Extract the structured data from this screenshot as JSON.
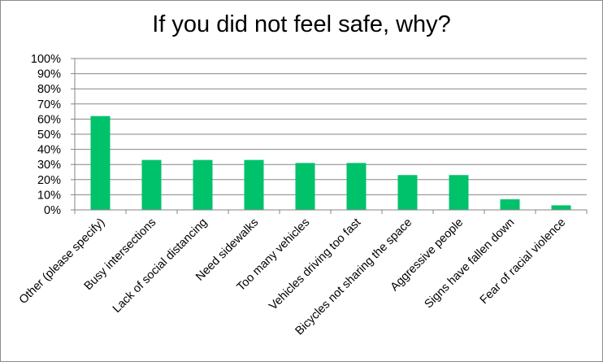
{
  "chart_data": {
    "type": "bar",
    "title": "If you did not feel safe, why?",
    "xlabel": "",
    "ylabel": "",
    "categories": [
      "Other (please specify)",
      "Busy intersections",
      "Lack of social distancing",
      "Need sidewalks",
      "Too many vehicles",
      "Vehicles driving too fast",
      "Bicycles not sharing the space",
      "Aggressive people",
      "Signs have fallen down",
      "Fear of racial violence"
    ],
    "values": [
      62,
      33,
      33,
      33,
      31,
      31,
      23,
      23,
      7,
      3
    ],
    "ylim": [
      0,
      100
    ],
    "yticks": [
      "0%",
      "10%",
      "20%",
      "30%",
      "40%",
      "50%",
      "60%",
      "70%",
      "80%",
      "90%",
      "100%"
    ],
    "grid": true,
    "legend": "none",
    "bar_color": "#00c26a"
  }
}
